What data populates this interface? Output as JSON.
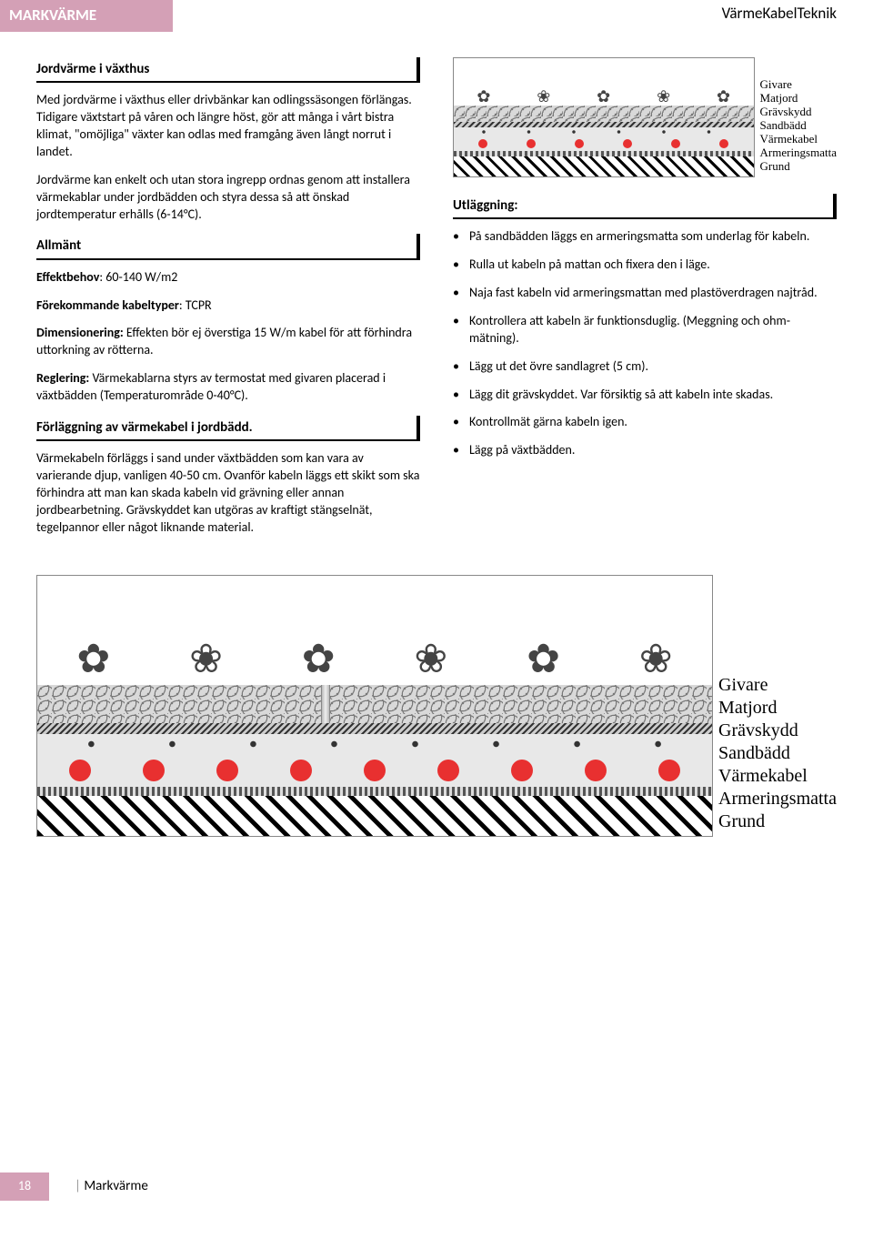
{
  "header": {
    "tab": "MARKVÄRME",
    "brand": "VärmeKabelTeknik"
  },
  "colors": {
    "accent": "#d4a0b6",
    "cable": "#e83030",
    "text": "#000000",
    "bg": "#ffffff"
  },
  "left": {
    "h1": "Jordvärme i växthus",
    "p1": "Med jordvärme i växthus eller drivbänkar kan odlingssäsongen förlängas. Tidigare växtstart på våren och längre höst, gör att många i vårt bistra klimat, \"omöjliga\" växter kan odlas med framgång även långt norrut i landet.",
    "p2": "Jordvärme kan enkelt och utan stora ingrepp ordnas genom att installera värmekablar under jordbädden och styra dessa så att önskad jordtemperatur erhålls (6-14°C).",
    "h2": "Allmänt",
    "effekt_label": "Effektbehov",
    "effekt_val": ": 60-140 W/m2",
    "kabel_label": "Förekommande kabeltyper",
    "kabel_val": ": TCPR",
    "dim_label": "Dimensionering:",
    "dim_val": " Effekten bör ej överstiga 15 W/m kabel för att förhindra uttorkning av rötterna.",
    "reg_label": "Reglering:",
    "reg_val": " Värmekablarna styrs av termostat med givaren placerad i växtbädden (Temperaturområde 0-40°C).",
    "h3": "Förläggning av värmekabel i jordbädd.",
    "p3": "Värmekabeln förläggs i sand under växtbädden som kan vara av varierande djup, vanligen 40-50 cm. Ovanför kabeln läggs ett skikt som ska förhindra att man kan skada kabeln vid grävning eller annan jordbearbetning. Grävskyddet kan utgöras av kraftigt stängselnät, tegelpannor eller något liknande material."
  },
  "right": {
    "h1": "Utläggning:",
    "bullets": [
      "På sandbädden läggs en armeringsmatta som underlag för kabeln.",
      "Rulla ut kabeln på mattan och fixera den i läge.",
      "Naja fast kabeln vid armeringsmattan med plastöverdragen najtråd.",
      "Kontrollera att kabeln är funktionsduglig. (Meggning och ohm-mätning).",
      "Lägg ut det övre sandlagret (5 cm).",
      "Lägg dit grävskyddet. Var försiktig så att kabeln inte skadas.",
      "Kontrollmät gärna kabeln igen.",
      "Lägg på växtbädden."
    ]
  },
  "diagram": {
    "layers": [
      "Givare",
      "Matjord",
      "Grävskydd",
      "Sandbädd",
      "Värmekabel",
      "Armeringsmatta",
      "Grund"
    ],
    "cable_color": "#e83030",
    "small_cable_dots": 6,
    "large_cable_dots": 9,
    "plant_glyph": "✿"
  },
  "footer": {
    "page": "18",
    "section": "Markvärme"
  }
}
